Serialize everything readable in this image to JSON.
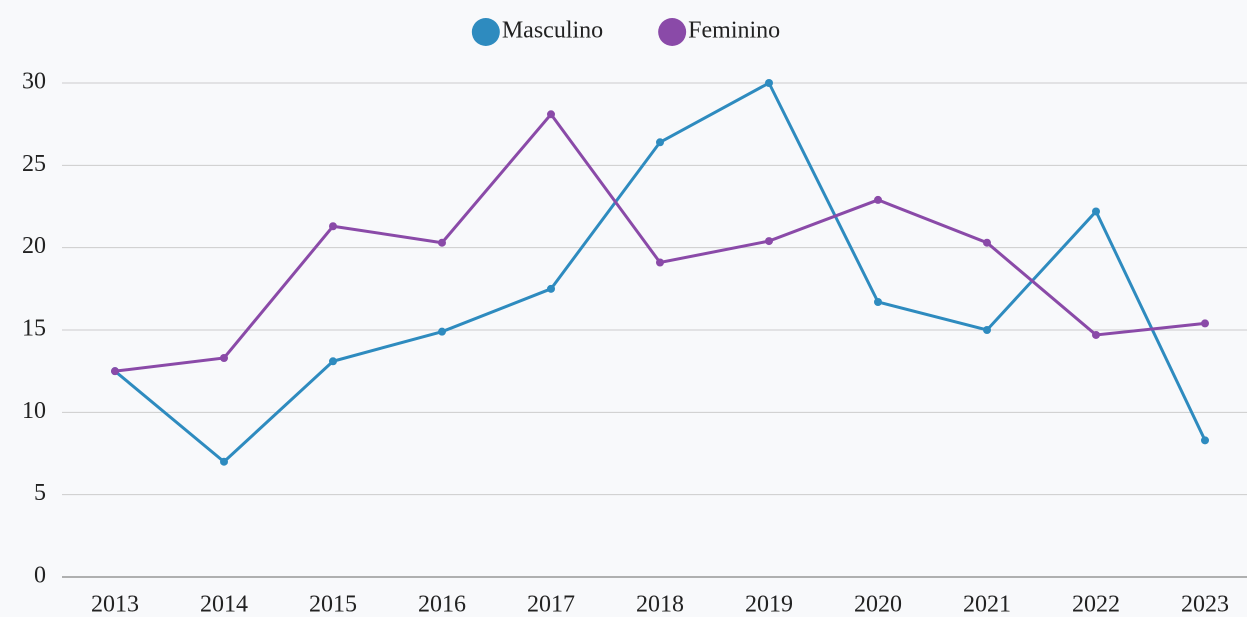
{
  "chart_data": {
    "type": "line",
    "categories": [
      "2013",
      "2014",
      "2015",
      "2016",
      "2017",
      "2018",
      "2019",
      "2020",
      "2021",
      "2022",
      "2023"
    ],
    "series": [
      {
        "name": "Masculino",
        "color": "#2e8bbf",
        "values": [
          12.5,
          7.0,
          13.1,
          14.9,
          17.5,
          26.4,
          30.0,
          16.7,
          15.0,
          22.2,
          8.3
        ]
      },
      {
        "name": "Feminino",
        "color": "#8a4aa8",
        "values": [
          12.5,
          13.3,
          21.3,
          20.3,
          28.1,
          19.1,
          20.4,
          22.9,
          20.3,
          14.7,
          15.4
        ]
      }
    ],
    "ylim": [
      0,
      30
    ],
    "yticks": [
      0,
      5,
      10,
      15,
      20,
      25,
      30
    ],
    "grid": true,
    "legend": "top"
  }
}
